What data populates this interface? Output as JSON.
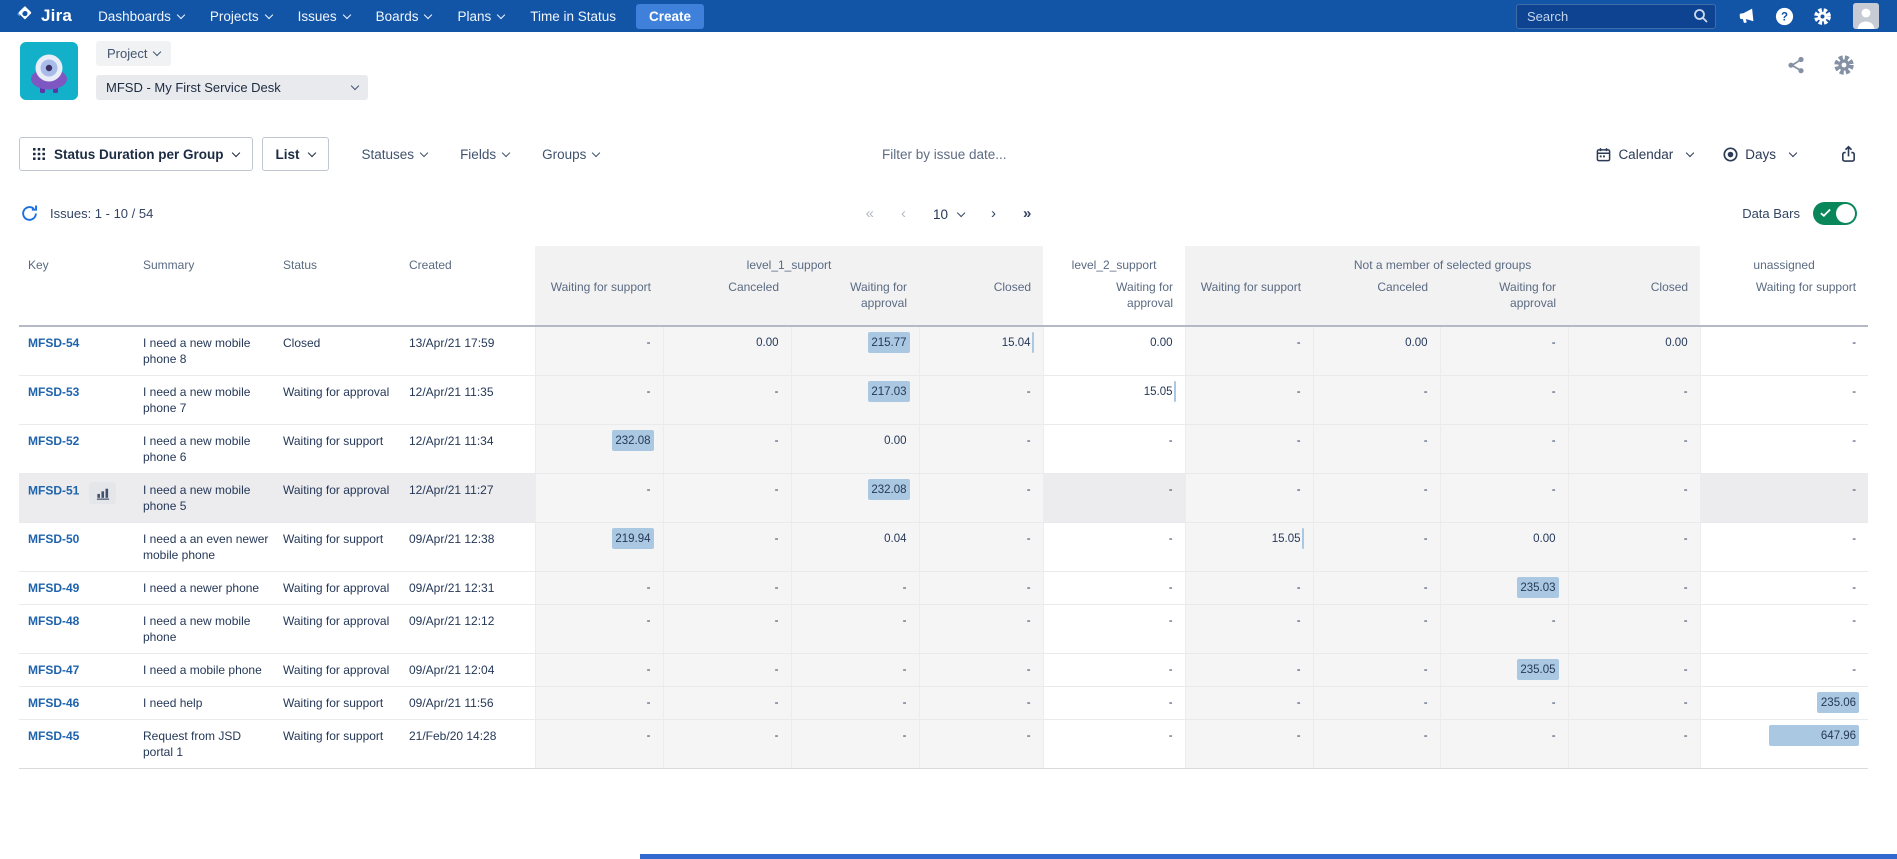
{
  "navbar": {
    "logo_text": "Jira",
    "items": [
      "Dashboards",
      "Projects",
      "Issues",
      "Boards",
      "Plans",
      "Time in Status"
    ],
    "create_label": "Create",
    "search_placeholder": "Search"
  },
  "header": {
    "scope_label": "Project",
    "project_select_value": "MFSD - My First Service Desk"
  },
  "toolbar": {
    "report_label": "Status Duration per Group",
    "view_label": "List",
    "dropdowns": [
      "Statuses",
      "Fields",
      "Groups"
    ],
    "filter_placeholder": "Filter by issue date...",
    "calendar_label": "Calendar",
    "unit_label": "Days"
  },
  "statusbar": {
    "issues_label": "Issues: 1 - 10 / 54",
    "page_size": "10",
    "databars_label": "Data Bars",
    "databars_on": true
  },
  "icons": {
    "logo": "jira-mark",
    "search": "magnifier",
    "announcement": "megaphone",
    "help": "question-circle",
    "settings": "gear",
    "user": "person-avatar",
    "share": "share-nodes",
    "report_picker": "grid-dots",
    "calendar": "calendar",
    "unit": "target-eye",
    "export": "box-up-arrow",
    "refresh": "circular-arrows",
    "row_chart": "bar-chart",
    "toggle_check": "checkmark"
  },
  "colors": {
    "navbar_bg": "#1254a6",
    "create_btn": "#3e80da",
    "key_link": "#1f63ad",
    "data_bar": "#abc8e2",
    "toggle_on": "#0a875a",
    "group_shade": "#f5f5f6",
    "hover_row": "#ececee",
    "project_avatar_bg": "#12b0c9"
  },
  "table": {
    "base_columns": [
      "Key",
      "Summary",
      "Status",
      "Created"
    ],
    "groups": [
      {
        "label": "level_1_support",
        "shaded": true,
        "columns": [
          "Waiting for support",
          "Canceled",
          "Waiting for\napproval",
          "Closed"
        ]
      },
      {
        "label": "level_2_support",
        "shaded": false,
        "columns": [
          "Waiting for\napproval"
        ]
      },
      {
        "label": "Not a member of selected groups",
        "shaded": true,
        "columns": [
          "Waiting for support",
          "Canceled",
          "Waiting for\napproval",
          "Closed"
        ]
      },
      {
        "label": "unassigned",
        "shaded": false,
        "columns": [
          "Waiting for support"
        ]
      }
    ],
    "unit": "Days",
    "max_value": 647.96,
    "rows": [
      {
        "key": "MFSD-54",
        "summary": "I need a new mobile phone 8",
        "status": "Closed",
        "created": "13/Apr/21 17:59",
        "hover": false,
        "has_chart_button": false,
        "values": [
          "-",
          "0.00",
          "215.77",
          "15.04",
          "0.00",
          "-",
          "0.00",
          "-",
          "0.00",
          "-"
        ]
      },
      {
        "key": "MFSD-53",
        "summary": "I need a new mobile phone 7",
        "status": "Waiting for approval",
        "created": "12/Apr/21 11:35",
        "hover": false,
        "has_chart_button": false,
        "values": [
          "-",
          "-",
          "217.03",
          "-",
          "15.05",
          "-",
          "-",
          "-",
          "-",
          "-"
        ]
      },
      {
        "key": "MFSD-52",
        "summary": "I need a new mobile phone 6",
        "status": "Waiting for support",
        "created": "12/Apr/21 11:34",
        "hover": false,
        "has_chart_button": false,
        "values": [
          "232.08",
          "-",
          "0.00",
          "-",
          "-",
          "-",
          "-",
          "-",
          "-",
          "-"
        ]
      },
      {
        "key": "MFSD-51",
        "summary": "I need a new mobile phone 5",
        "status": "Waiting for approval",
        "created": "12/Apr/21 11:27",
        "hover": true,
        "has_chart_button": true,
        "values": [
          "-",
          "-",
          "232.08",
          "-",
          "-",
          "-",
          "-",
          "-",
          "-",
          "-"
        ]
      },
      {
        "key": "MFSD-50",
        "summary": "I need a an even newer mobile phone",
        "status": "Waiting for support",
        "created": "09/Apr/21 12:38",
        "hover": false,
        "has_chart_button": false,
        "values": [
          "219.94",
          "-",
          "0.04",
          "-",
          "-",
          "15.05",
          "-",
          "0.00",
          "-",
          "-"
        ]
      },
      {
        "key": "MFSD-49",
        "summary": "I need a newer phone",
        "status": "Waiting for approval",
        "created": "09/Apr/21 12:31",
        "hover": false,
        "has_chart_button": false,
        "values": [
          "-",
          "-",
          "-",
          "-",
          "-",
          "-",
          "-",
          "235.03",
          "-",
          "-"
        ]
      },
      {
        "key": "MFSD-48",
        "summary": "I need a new mobile phone",
        "status": "Waiting for approval",
        "created": "09/Apr/21 12:12",
        "hover": false,
        "has_chart_button": false,
        "values": [
          "-",
          "-",
          "-",
          "-",
          "-",
          "-",
          "-",
          "-",
          "-",
          "-"
        ]
      },
      {
        "key": "MFSD-47",
        "summary": "I need a mobile phone",
        "status": "Waiting for approval",
        "created": "09/Apr/21 12:04",
        "hover": false,
        "has_chart_button": false,
        "values": [
          "-",
          "-",
          "-",
          "-",
          "-",
          "-",
          "-",
          "235.05",
          "-",
          "-"
        ]
      },
      {
        "key": "MFSD-46",
        "summary": "I need help",
        "status": "Waiting for support",
        "created": "09/Apr/21 11:56",
        "hover": false,
        "has_chart_button": false,
        "values": [
          "-",
          "-",
          "-",
          "-",
          "-",
          "-",
          "-",
          "-",
          "-",
          "235.06"
        ]
      },
      {
        "key": "MFSD-45",
        "summary": "Request from JSD portal 1",
        "status": "Waiting for support",
        "created": "21/Feb/20 14:28",
        "hover": false,
        "has_chart_button": false,
        "values": [
          "-",
          "-",
          "-",
          "-",
          "-",
          "-",
          "-",
          "-",
          "-",
          "647.96"
        ]
      }
    ]
  }
}
